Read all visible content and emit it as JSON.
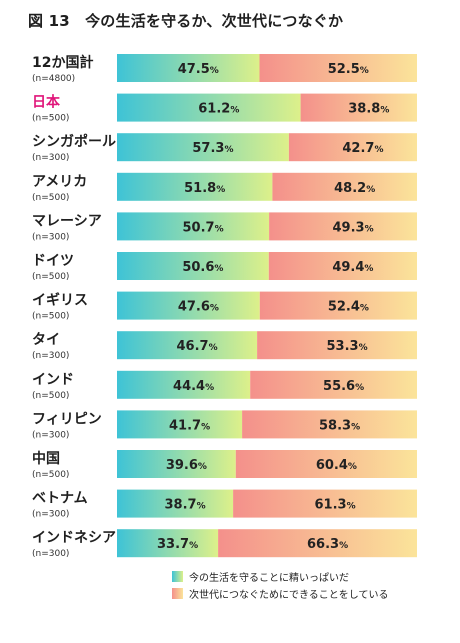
{
  "title": "図 13　今の生活を守るか、次世代につなぐか",
  "chart_data": {
    "type": "bar",
    "stacked": "horizontal-100-percent",
    "unit": "%",
    "categories": [
      {
        "name": "12か国計",
        "n": "(n=4800)",
        "highlight": false
      },
      {
        "name": "日本",
        "n": "(n=500)",
        "highlight": true
      },
      {
        "name": "シンガポール",
        "n": "(n=300)",
        "highlight": false
      },
      {
        "name": "アメリカ",
        "n": "(n=500)",
        "highlight": false
      },
      {
        "name": "マレーシア",
        "n": "(n=300)",
        "highlight": false
      },
      {
        "name": "ドイツ",
        "n": "(n=500)",
        "highlight": false
      },
      {
        "name": "イギリス",
        "n": "(n=500)",
        "highlight": false
      },
      {
        "name": "タイ",
        "n": "(n=300)",
        "highlight": false
      },
      {
        "name": "インド",
        "n": "(n=500)",
        "highlight": false
      },
      {
        "name": "フィリピン",
        "n": "(n=300)",
        "highlight": false
      },
      {
        "name": "中国",
        "n": "(n=500)",
        "highlight": false
      },
      {
        "name": "ベトナム",
        "n": "(n=300)",
        "highlight": false
      },
      {
        "name": "インドネシア",
        "n": "(n=300)",
        "highlight": false
      }
    ],
    "series": [
      {
        "name": "今の生活を守ることに精いっぱいだ",
        "values": [
          47.5,
          61.2,
          57.3,
          51.8,
          50.7,
          50.6,
          47.6,
          46.7,
          44.4,
          41.7,
          39.6,
          38.7,
          33.7
        ],
        "colors": [
          "#3ec3d6",
          "#ddf08a"
        ]
      },
      {
        "name": "次世代につなぐためにできることをしている",
        "values": [
          52.5,
          38.8,
          42.7,
          48.2,
          49.3,
          49.4,
          52.4,
          53.3,
          55.6,
          58.3,
          60.4,
          61.3,
          66.3
        ],
        "colors": [
          "#f4908b",
          "#fbe49a"
        ]
      }
    ],
    "highlight_color": "#e0157a",
    "xlim": [
      0,
      100
    ]
  }
}
